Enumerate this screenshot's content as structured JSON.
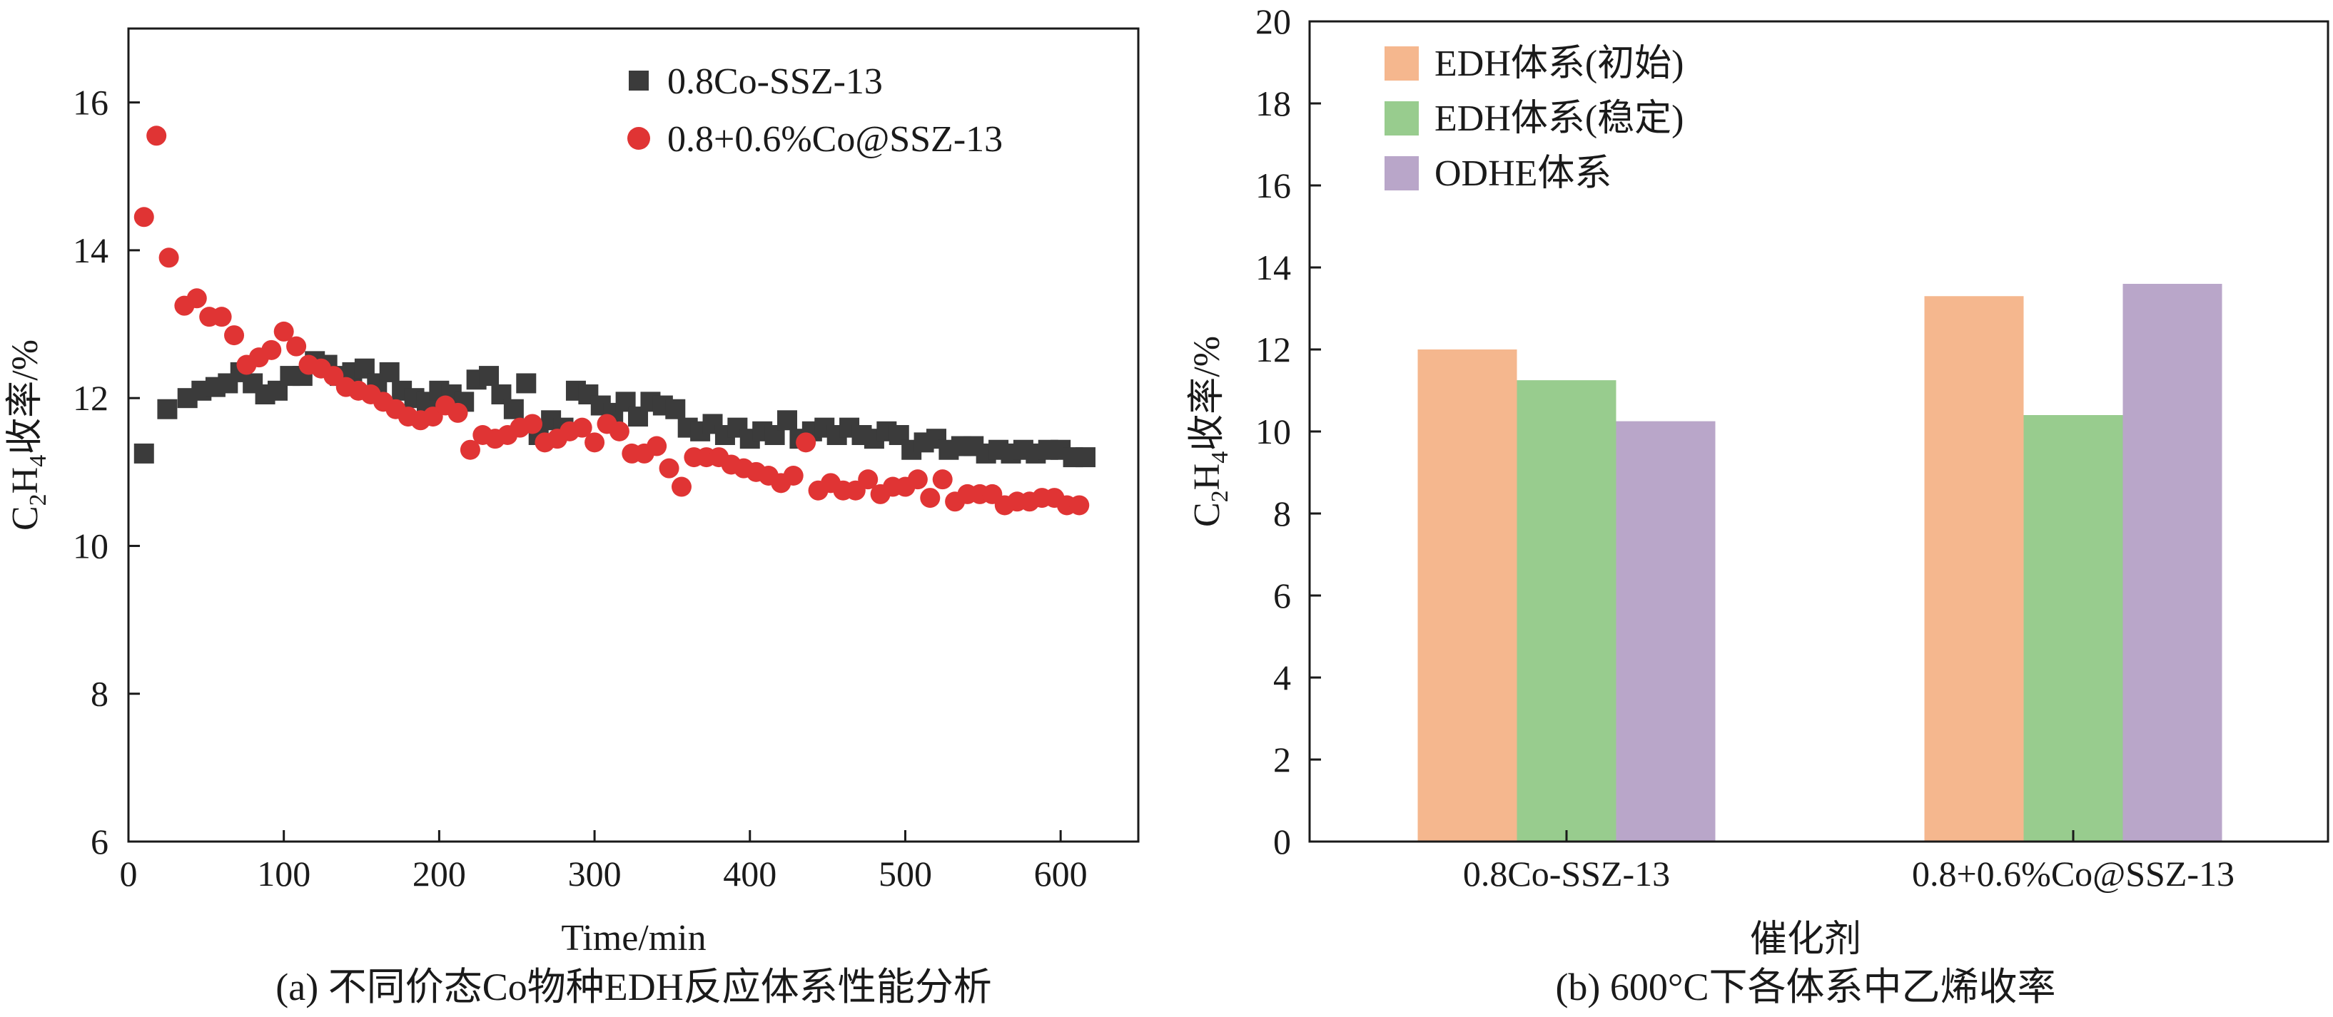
{
  "colors": {
    "black_marker": "#3b3b3b",
    "red_marker": "#e03434",
    "bar_initial": "#f5b78e",
    "bar_stable": "#98cc8e",
    "bar_odhe": "#b9a6c9",
    "axis": "#1a1a1a"
  },
  "chart_data": [
    {
      "type": "scatter",
      "caption": "(a) 不同价态Co物种EDH反应体系性能分析",
      "xlabel": "Time/min",
      "ylabel": "C2H4收率/%",
      "ylabel_parts": {
        "c": "C",
        "sub2": "2",
        "h": "H",
        "sub4": "4",
        "rest": "收率/%"
      },
      "xlim": [
        0,
        650
      ],
      "ylim": [
        6,
        17
      ],
      "xticks": [
        "0",
        "100",
        "200",
        "300",
        "400",
        "500",
        "600"
      ],
      "yticks": [
        "6",
        "8",
        "10",
        "12",
        "14",
        "16"
      ],
      "legend_position": "top-right",
      "series": [
        {
          "name": "0.8Co-SSZ-13",
          "marker": "square",
          "x": [
            10,
            25,
            38,
            47,
            56,
            64,
            72,
            80,
            88,
            96,
            104,
            112,
            120,
            128,
            136,
            144,
            152,
            160,
            168,
            176,
            184,
            192,
            200,
            208,
            216,
            224,
            232,
            240,
            248,
            256,
            264,
            272,
            280,
            288,
            296,
            304,
            312,
            320,
            328,
            336,
            344,
            352,
            360,
            368,
            376,
            384,
            392,
            400,
            408,
            416,
            424,
            432,
            440,
            448,
            456,
            464,
            472,
            480,
            488,
            496,
            504,
            512,
            520,
            528,
            536,
            544,
            552,
            560,
            568,
            576,
            584,
            592,
            600,
            608,
            616
          ],
          "y": [
            11.25,
            11.85,
            12.0,
            12.1,
            12.15,
            12.2,
            12.35,
            12.2,
            12.05,
            12.1,
            12.3,
            12.3,
            12.5,
            12.45,
            12.3,
            12.35,
            12.4,
            12.2,
            12.35,
            12.1,
            12.0,
            11.95,
            12.1,
            12.05,
            11.95,
            12.25,
            12.3,
            12.05,
            11.85,
            12.2,
            11.5,
            11.7,
            11.6,
            12.1,
            12.05,
            11.9,
            11.8,
            11.95,
            11.75,
            11.95,
            11.9,
            11.85,
            11.6,
            11.55,
            11.65,
            11.5,
            11.6,
            11.45,
            11.55,
            11.5,
            11.7,
            11.45,
            11.55,
            11.6,
            11.5,
            11.6,
            11.5,
            11.45,
            11.55,
            11.5,
            11.3,
            11.4,
            11.45,
            11.3,
            11.35,
            11.35,
            11.25,
            11.3,
            11.25,
            11.3,
            11.25,
            11.3,
            11.3,
            11.2,
            11.2
          ]
        },
        {
          "name": "0.8+0.6%Co@SSZ-13",
          "marker": "circle",
          "x": [
            10,
            18,
            26,
            36,
            44,
            52,
            60,
            68,
            76,
            84,
            92,
            100,
            108,
            116,
            124,
            132,
            140,
            148,
            156,
            164,
            172,
            180,
            188,
            196,
            204,
            212,
            220,
            228,
            236,
            244,
            252,
            260,
            268,
            276,
            284,
            292,
            300,
            308,
            316,
            324,
            332,
            340,
            348,
            356,
            364,
            372,
            380,
            388,
            396,
            404,
            412,
            420,
            428,
            436,
            444,
            452,
            460,
            468,
            476,
            484,
            492,
            500,
            508,
            516,
            524,
            532,
            540,
            548,
            556,
            564,
            572,
            580,
            588,
            596,
            604,
            612
          ],
          "y": [
            14.45,
            15.55,
            13.9,
            13.25,
            13.35,
            13.1,
            13.1,
            12.85,
            12.45,
            12.55,
            12.65,
            12.9,
            12.7,
            12.45,
            12.4,
            12.3,
            12.15,
            12.1,
            12.05,
            11.95,
            11.85,
            11.75,
            11.7,
            11.75,
            11.9,
            11.8,
            11.3,
            11.5,
            11.45,
            11.5,
            11.6,
            11.65,
            11.4,
            11.45,
            11.55,
            11.6,
            11.4,
            11.65,
            11.55,
            11.25,
            11.25,
            11.35,
            11.05,
            10.8,
            11.2,
            11.2,
            11.2,
            11.1,
            11.05,
            11.0,
            10.95,
            10.85,
            10.95,
            11.4,
            10.75,
            10.85,
            10.75,
            10.75,
            10.9,
            10.7,
            10.8,
            10.8,
            10.9,
            10.65,
            10.9,
            10.6,
            10.7,
            10.7,
            10.7,
            10.55,
            10.6,
            10.6,
            10.65,
            10.65,
            10.55,
            10.55
          ]
        }
      ]
    },
    {
      "type": "bar",
      "caption": "(b) 600°C下各体系中乙烯收率",
      "xlabel": "催化剂",
      "ylabel": "C2H4收率/%",
      "ylabel_parts": {
        "c": "C",
        "sub2": "2",
        "h": "H",
        "sub4": "4",
        "rest": "收率/%"
      },
      "ylim": [
        0,
        20
      ],
      "yticks": [
        "0",
        "2",
        "4",
        "6",
        "8",
        "10",
        "12",
        "14",
        "16",
        "18",
        "20"
      ],
      "categories": [
        "0.8Co-SSZ-13",
        "0.8+0.6%Co@SSZ-13"
      ],
      "legend_position": "top-left",
      "series": [
        {
          "name": "EDH体系(初始)",
          "values": [
            12.0,
            13.3
          ]
        },
        {
          "name": "EDH体系(稳定)",
          "values": [
            11.25,
            10.4
          ]
        },
        {
          "name": "ODHE体系",
          "values": [
            10.25,
            13.6
          ]
        }
      ]
    }
  ]
}
